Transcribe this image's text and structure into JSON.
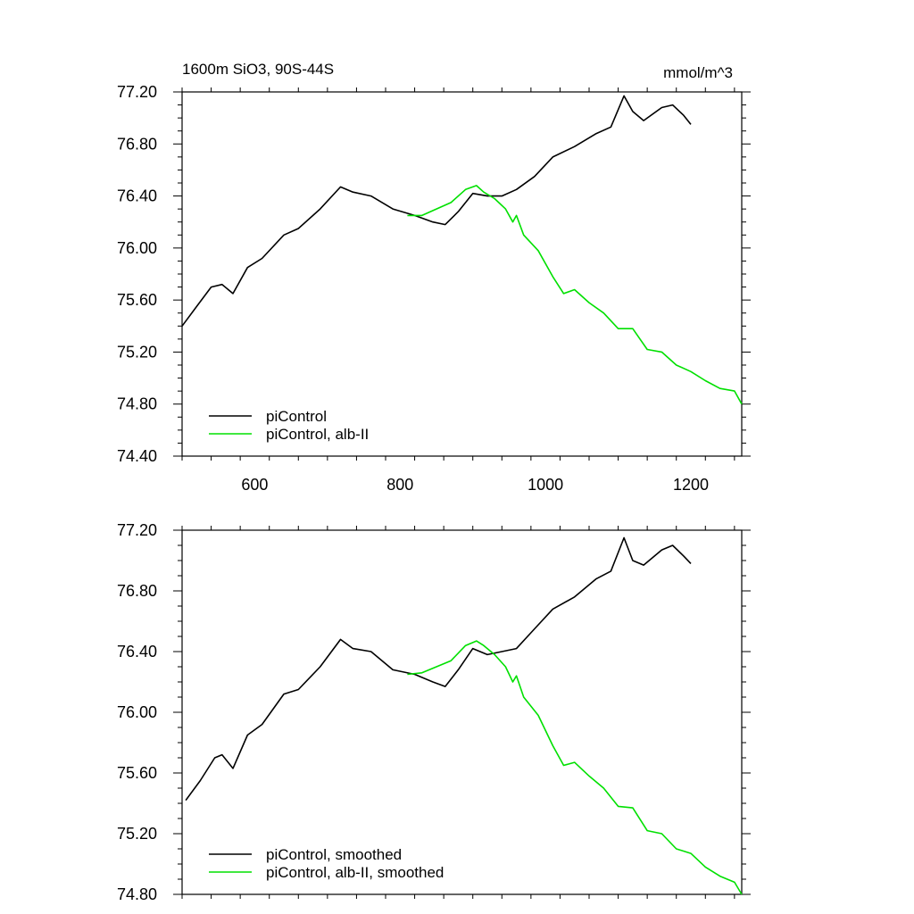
{
  "chart_data": [
    {
      "type": "line",
      "title": "1600m SiO3, 90S-44S",
      "units": "mmol/m^3",
      "xlim": [
        500,
        1270
      ],
      "ylim": [
        74.4,
        77.2
      ],
      "xticks": [
        600,
        800,
        1000,
        1200
      ],
      "xtick_labels": [
        "600",
        "800",
        "1000",
        "1200"
      ],
      "yticks": [
        74.4,
        74.8,
        75.2,
        75.6,
        76.0,
        76.4,
        76.8,
        77.2
      ],
      "ytick_labels": [
        "74.40",
        "74.80",
        "75.20",
        "75.60",
        "76.00",
        "76.40",
        "76.80",
        "77.20"
      ],
      "grid": false,
      "legend_position": "bottom-left",
      "series": [
        {
          "name": "piControl",
          "color": "#000000",
          "x": [
            500,
            520,
            540,
            555,
            570,
            590,
            610,
            640,
            660,
            690,
            718,
            735,
            760,
            790,
            820,
            845,
            862,
            880,
            900,
            920,
            940,
            960,
            985,
            1010,
            1040,
            1070,
            1090,
            1108,
            1120,
            1135,
            1160,
            1175,
            1190,
            1200
          ],
          "y": [
            75.4,
            75.55,
            75.7,
            75.72,
            75.65,
            75.85,
            75.92,
            76.1,
            76.15,
            76.3,
            76.47,
            76.43,
            76.4,
            76.3,
            76.25,
            76.2,
            76.18,
            76.28,
            76.42,
            76.4,
            76.4,
            76.45,
            76.55,
            76.7,
            76.78,
            76.88,
            76.93,
            77.17,
            77.05,
            76.98,
            77.08,
            77.1,
            77.02,
            76.95
          ]
        },
        {
          "name": "piControl, alb-II",
          "color": "#00e000",
          "x": [
            810,
            830,
            850,
            870,
            890,
            905,
            915,
            930,
            945,
            955,
            960,
            970,
            990,
            1010,
            1025,
            1040,
            1060,
            1080,
            1100,
            1120,
            1140,
            1160,
            1180,
            1200,
            1220,
            1240,
            1260,
            1270
          ],
          "y": [
            76.25,
            76.25,
            76.3,
            76.35,
            76.45,
            76.48,
            76.43,
            76.38,
            76.3,
            76.2,
            76.25,
            76.1,
            75.98,
            75.78,
            75.65,
            75.68,
            75.58,
            75.5,
            75.38,
            75.38,
            75.22,
            75.2,
            75.1,
            75.05,
            74.98,
            74.92,
            74.9,
            74.8
          ]
        }
      ]
    },
    {
      "type": "line",
      "xlim": [
        500,
        1270
      ],
      "ylim": [
        74.8,
        77.2
      ],
      "xticks": [
        600,
        800,
        1000,
        1200
      ],
      "yticks": [
        74.8,
        75.2,
        75.6,
        76.0,
        76.4,
        76.8,
        77.2
      ],
      "ytick_labels": [
        "74.80",
        "75.20",
        "75.60",
        "76.00",
        "76.40",
        "76.80",
        "77.20"
      ],
      "grid": false,
      "legend_position": "bottom-left",
      "series": [
        {
          "name": "piControl, smoothed",
          "color": "#000000",
          "x": [
            505,
            525,
            545,
            555,
            570,
            590,
            610,
            640,
            660,
            690,
            718,
            735,
            760,
            790,
            820,
            845,
            862,
            880,
            900,
            920,
            940,
            960,
            985,
            1010,
            1040,
            1070,
            1090,
            1108,
            1120,
            1135,
            1160,
            1175,
            1190,
            1200
          ],
          "y": [
            75.42,
            75.55,
            75.7,
            75.72,
            75.63,
            75.85,
            75.92,
            76.12,
            76.15,
            76.3,
            76.48,
            76.42,
            76.4,
            76.28,
            76.25,
            76.2,
            76.17,
            76.28,
            76.42,
            76.38,
            76.4,
            76.42,
            76.55,
            76.68,
            76.76,
            76.88,
            76.93,
            77.15,
            77.0,
            76.97,
            77.07,
            77.1,
            77.03,
            76.98
          ]
        },
        {
          "name": "piControl, alb-II, smoothed",
          "color": "#00e000",
          "x": [
            810,
            830,
            850,
            870,
            890,
            905,
            915,
            930,
            945,
            955,
            960,
            970,
            990,
            1010,
            1025,
            1040,
            1060,
            1080,
            1100,
            1120,
            1140,
            1160,
            1180,
            1200,
            1220,
            1240,
            1260,
            1270
          ],
          "y": [
            76.25,
            76.26,
            76.3,
            76.34,
            76.44,
            76.47,
            76.44,
            76.38,
            76.3,
            76.2,
            76.24,
            76.1,
            75.98,
            75.78,
            75.65,
            75.67,
            75.58,
            75.5,
            75.38,
            75.37,
            75.22,
            75.2,
            75.1,
            75.07,
            74.98,
            74.92,
            74.88,
            74.8
          ]
        }
      ]
    }
  ]
}
